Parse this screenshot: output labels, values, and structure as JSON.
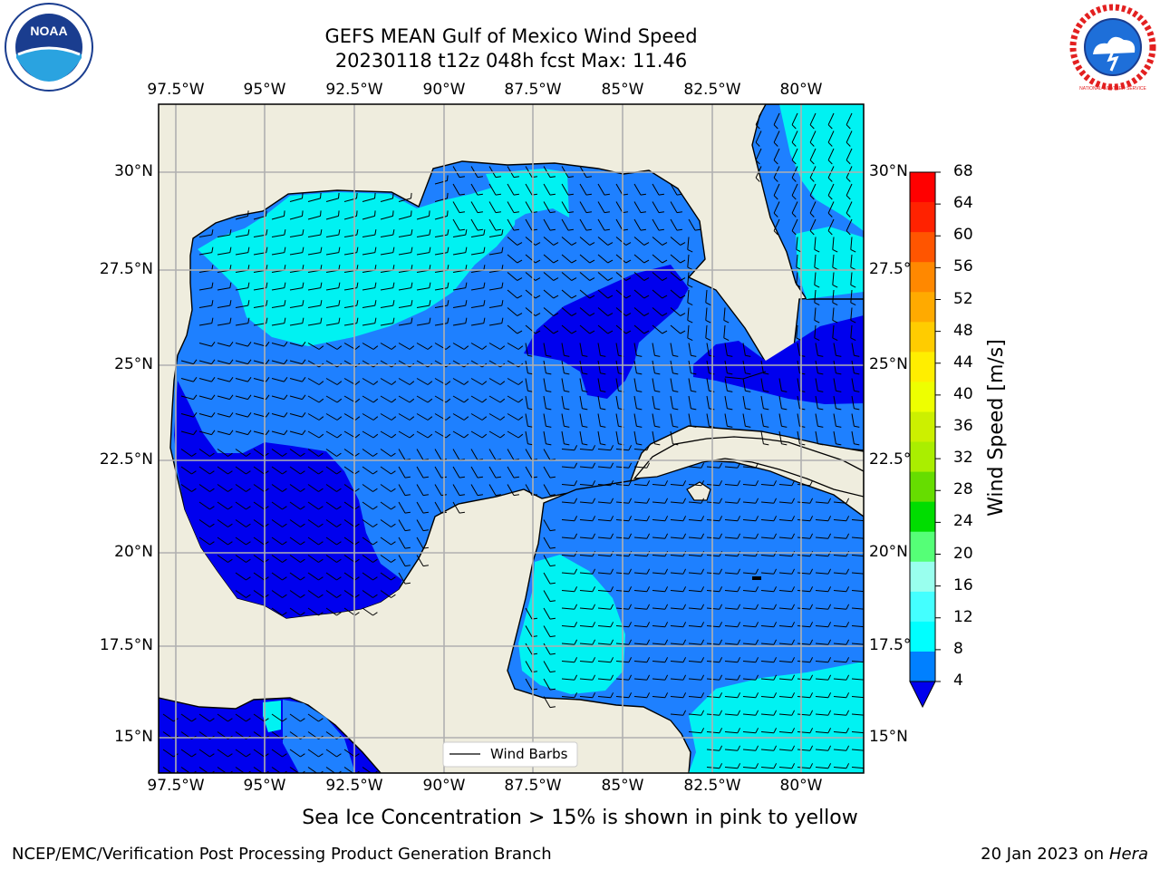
{
  "title_line1": "GEFS MEAN Gulf of Mexico Wind Speed",
  "title_line2": "20230118 t12z 048h fcst   Max: 11.46",
  "logos": {
    "left": "NOAA",
    "right": "NATIONAL WEATHER SERVICE"
  },
  "lon_labels": [
    "97.5°W",
    "95°W",
    "92.5°W",
    "90°W",
    "87.5°W",
    "85°W",
    "82.5°W",
    "80°W"
  ],
  "lat_labels_left": [
    "30°N",
    "27.5°N",
    "25°N",
    "22.5°N",
    "20°N",
    "17.5°N",
    "15°N"
  ],
  "lat_labels_right": [
    "30°N",
    "27.5°",
    "25°N",
    "22.5°",
    "20°N",
    "17.5°",
    "15°N"
  ],
  "legend": {
    "label": "Wind Barbs"
  },
  "colorbar": {
    "label": "Wind Speed [m/s]",
    "ticks": [
      "68",
      "64",
      "60",
      "56",
      "52",
      "48",
      "44",
      "40",
      "36",
      "32",
      "28",
      "24",
      "20",
      "16",
      "12",
      "8",
      "4"
    ],
    "colors": [
      "#ff0000",
      "#ff2200",
      "#ff5500",
      "#ff8800",
      "#ffaa00",
      "#ffcc00",
      "#ffee00",
      "#eeff00",
      "#ccf000",
      "#aaee00",
      "#66dd00",
      "#00dd00",
      "#55ff77",
      "#99ffee",
      "#44ffff",
      "#00ffff",
      "#0080ff"
    ],
    "extend_color": "#0000ee"
  },
  "field_colors": {
    "band_4_8": "#1e80ff",
    "band_8_12": "#00f2f2",
    "below_4": "#0000ee",
    "land": "#efedde"
  },
  "subtitle": "Sea Ice Concentration > 15% is shown in pink to yellow",
  "footer_left": "NCEP/EMC/Verification Post Processing Product Generation Branch",
  "footer_right_date": "20 Jan 2023 on",
  "footer_right_machine": "Hera"
}
